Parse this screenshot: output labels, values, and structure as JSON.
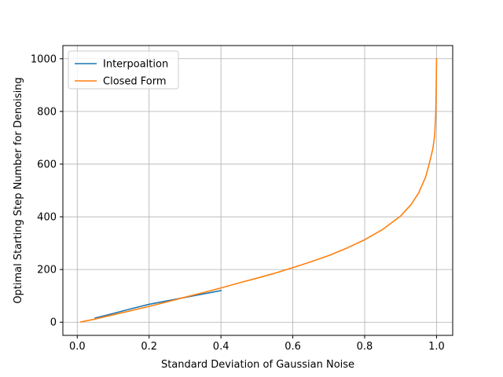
{
  "chart_data": {
    "type": "line",
    "xlabel": "Standard Deviation of Gaussian Noise",
    "ylabel": "Optimal Starting Step Number for Denoising",
    "xlim": [
      -0.04,
      1.045
    ],
    "ylim": [
      -50,
      1050
    ],
    "xticks": [
      0.0,
      0.2,
      0.4,
      0.6,
      0.8,
      1.0
    ],
    "xtick_labels": [
      "0.0",
      "0.2",
      "0.4",
      "0.6",
      "0.8",
      "1.0"
    ],
    "yticks": [
      0,
      200,
      400,
      600,
      800,
      1000
    ],
    "ytick_labels": [
      "0",
      "200",
      "400",
      "600",
      "800",
      "1000"
    ],
    "grid": true,
    "legend_position": "top-left",
    "series": [
      {
        "name": "Interpoaltion",
        "color": "#1f77b4",
        "x": [
          0.05,
          0.1,
          0.15,
          0.2,
          0.25,
          0.3,
          0.35,
          0.4
        ],
        "y": [
          16,
          33,
          51,
          68,
          81,
          94,
          107,
          120
        ]
      },
      {
        "name": "Closed Form",
        "color": "#ff7f0e",
        "x": [
          0.01,
          0.05,
          0.1,
          0.15,
          0.2,
          0.25,
          0.3,
          0.35,
          0.4,
          0.45,
          0.5,
          0.55,
          0.6,
          0.65,
          0.7,
          0.75,
          0.8,
          0.85,
          0.9,
          0.93,
          0.95,
          0.97,
          0.98,
          0.99,
          0.995,
          0.998,
          0.999,
          1.0
        ],
        "y": [
          1,
          12,
          28,
          44,
          60,
          77,
          95,
          112,
          130,
          149,
          167,
          186,
          207,
          229,
          253,
          281,
          313,
          352,
          403,
          448,
          490,
          552,
          603,
          660,
          710,
          800,
          880,
          1000
        ]
      }
    ]
  }
}
